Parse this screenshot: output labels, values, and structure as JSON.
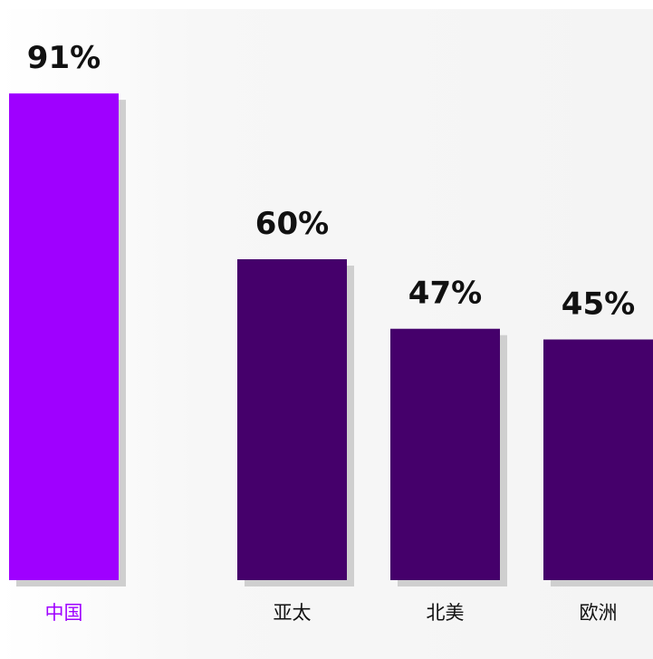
{
  "chart_data": {
    "type": "bar",
    "categories": [
      "中国",
      "亚太",
      "北美",
      "欧洲"
    ],
    "values": [
      91,
      60,
      47,
      45
    ],
    "value_labels": [
      "91%",
      "60%",
      "47%",
      "45%"
    ],
    "ylim": [
      0,
      100
    ],
    "grid": false,
    "legend": "none",
    "colors": {
      "highlight": "#9f00ff",
      "bar": "#45006b",
      "shadow": "#cfcfcf",
      "highlight_label": "#9f00ff",
      "label": "#111111"
    },
    "highlight_index": 0
  }
}
